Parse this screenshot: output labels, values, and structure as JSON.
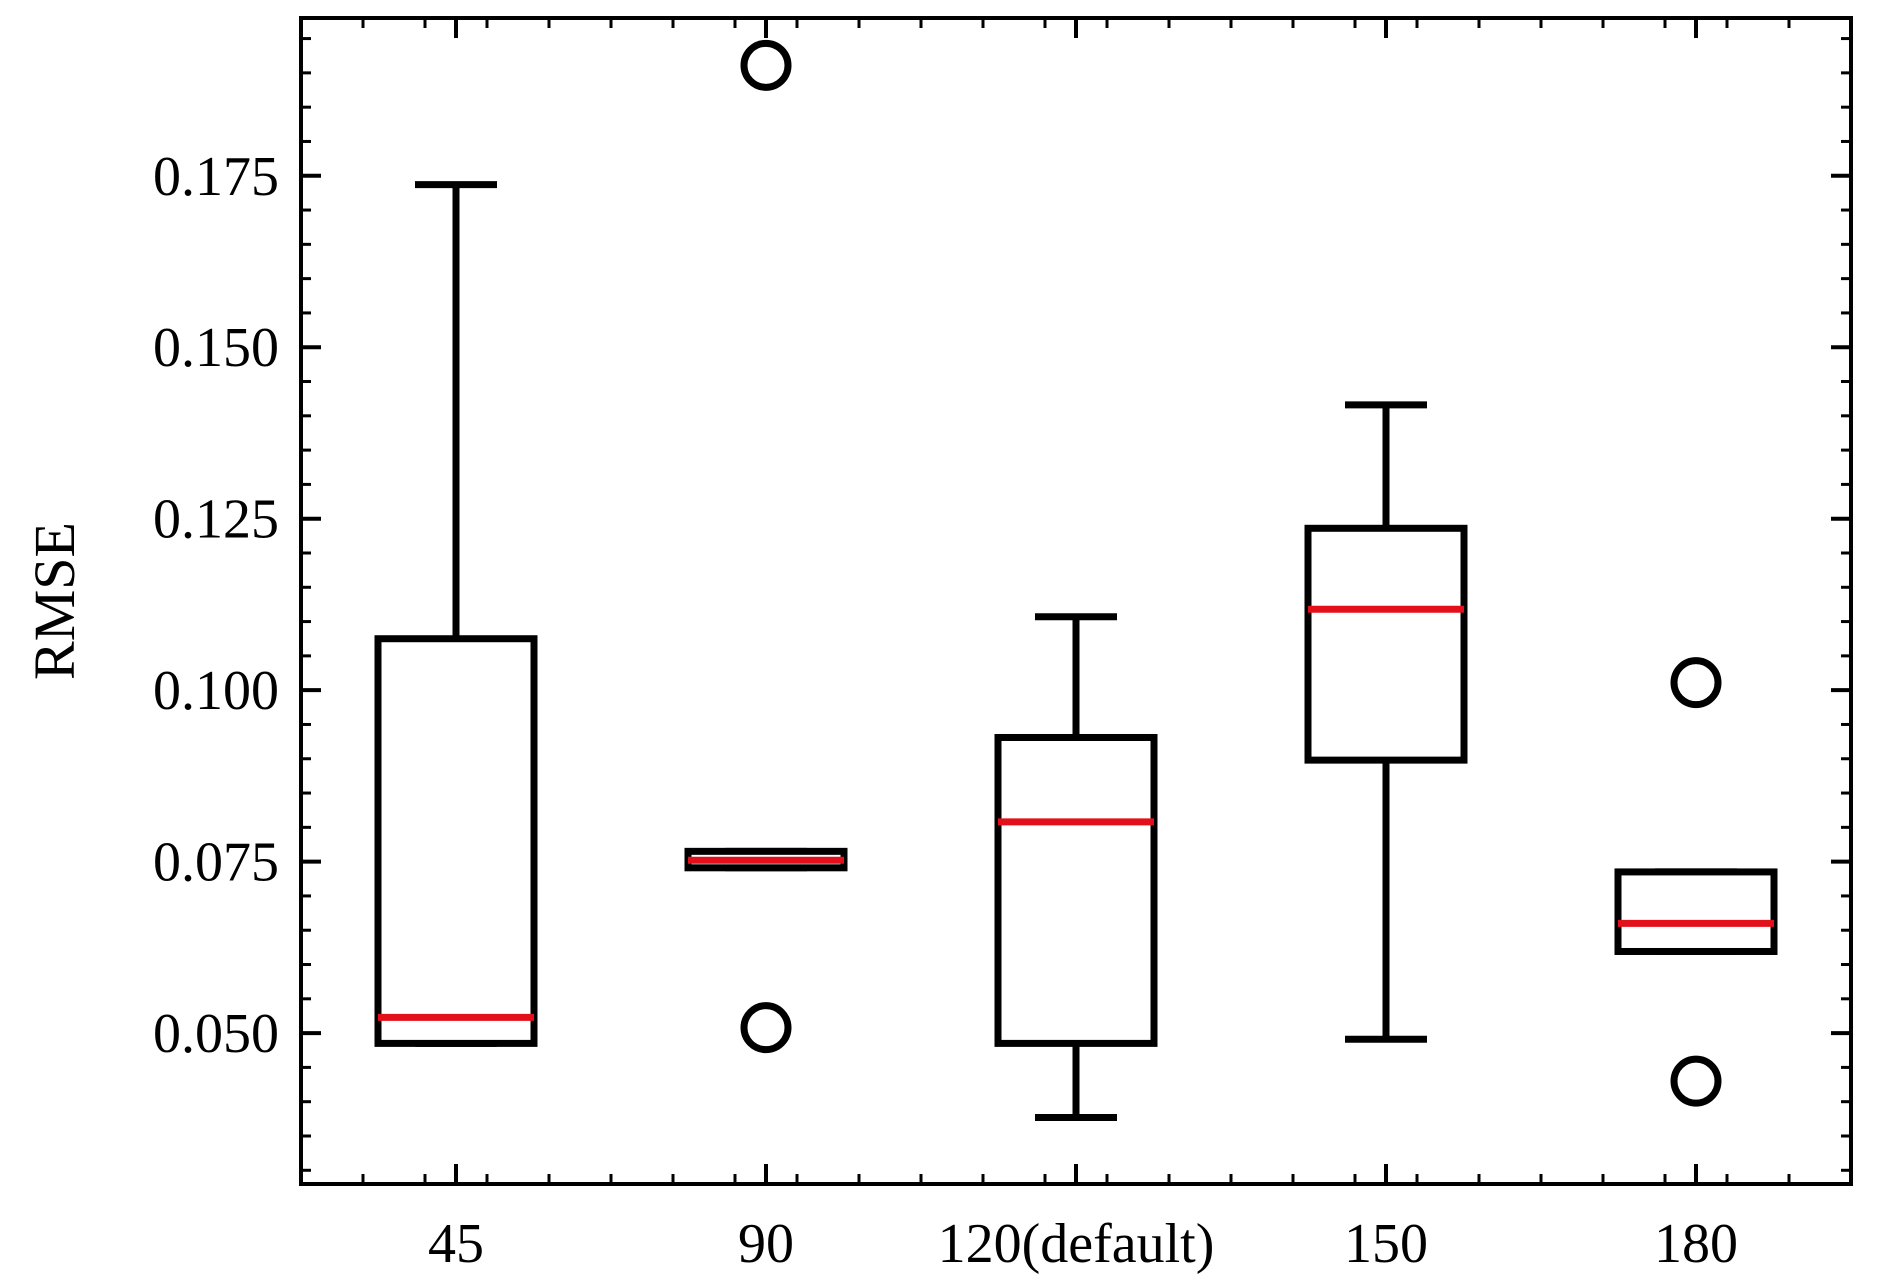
{
  "chart_data": {
    "type": "box",
    "ylabel": "RMSE",
    "xlabel": "",
    "ylim": [
      0.028,
      0.198
    ],
    "yticks": [
      0.05,
      0.075,
      0.1,
      0.125,
      0.15,
      0.175
    ],
    "ytick_labels": [
      "0.050",
      "0.075",
      "0.100",
      "0.125",
      "0.150",
      "0.175"
    ],
    "y_minor_step": 0.005,
    "grid": false,
    "categories": [
      "45",
      "90",
      "120(default)",
      "150",
      "180"
    ],
    "boxes": [
      {
        "category": "45",
        "whisker_low": 0.0485,
        "q1": 0.0485,
        "median": 0.0523,
        "q3": 0.1075,
        "whisker_high": 0.1737,
        "outliers": []
      },
      {
        "category": "90",
        "whisker_low": 0.0741,
        "q1": 0.0741,
        "median": 0.0752,
        "q3": 0.0765,
        "whisker_high": 0.0765,
        "outliers": [
          0.1911,
          0.0508
        ]
      },
      {
        "category": "120(default)",
        "whisker_low": 0.0377,
        "q1": 0.0485,
        "median": 0.0808,
        "q3": 0.0931,
        "whisker_high": 0.1107,
        "outliers": []
      },
      {
        "category": "150",
        "whisker_low": 0.0491,
        "q1": 0.0898,
        "median": 0.1118,
        "q3": 0.1236,
        "whisker_high": 0.1416,
        "outliers": []
      },
      {
        "category": "180",
        "whisker_low": 0.0619,
        "q1": 0.0619,
        "median": 0.066,
        "q3": 0.0735,
        "whisker_high": 0.0735,
        "outliers": [
          0.1011,
          0.043
        ]
      }
    ],
    "colors": {
      "box": "#000000",
      "median": "#e3101b",
      "outlier_edge": "#000000"
    }
  }
}
